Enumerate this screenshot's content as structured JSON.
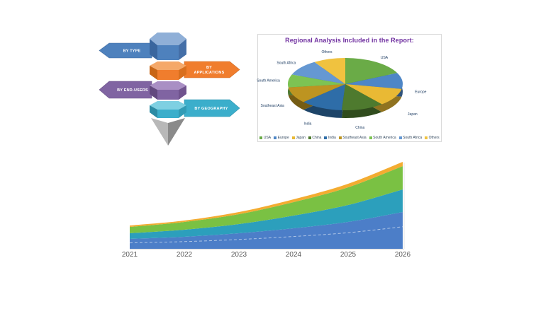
{
  "pencil_diagram": {
    "arrows": [
      {
        "label": "BY TYPE",
        "direction": "left",
        "color": "#4e81bd",
        "two_line": false
      },
      {
        "label": "BY APPLICATIONS",
        "direction": "right",
        "color": "#f07d2d",
        "two_line": true
      },
      {
        "label": "BY END-USERS",
        "direction": "left",
        "color": "#8064a2",
        "two_line": false
      },
      {
        "label": "BY GEOGRAPHY",
        "direction": "right",
        "color": "#3baecb",
        "two_line": false
      }
    ],
    "segments": [
      {
        "base": "#4e81bd",
        "light": "#8fafd7",
        "dark": "#3a669e",
        "darker": "#446fa8"
      },
      {
        "base": "#f07d2d",
        "light": "#f5a869",
        "dark": "#c86515",
        "darker": "#d96f1e"
      },
      {
        "base": "#8064a2",
        "light": "#a98fc4",
        "dark": "#63497f",
        "darker": "#70538e"
      },
      {
        "base": "#3baecb",
        "light": "#7ed0e2",
        "dark": "#2b8ba4",
        "darker": "#319bb5"
      }
    ],
    "tip": {
      "light": "#b8b8b8",
      "dark": "#8a8a8a"
    }
  },
  "pie_panel": {
    "title": "Regional Analysis Included in the Report:",
    "title_color": "#7030a0",
    "border_color": "#d8d8d8",
    "label_color": "#17375e"
  },
  "chart_data": [
    {
      "type": "pie",
      "style": "3d",
      "title": "Regional Analysis Included in the Report:",
      "labels": [
        "USA",
        "Europe",
        "Japan",
        "China",
        "India",
        "Southeast Asia",
        "South America",
        "South Africa",
        "Others"
      ],
      "values": [
        18,
        10,
        11,
        12,
        12,
        10,
        8,
        10,
        9
      ],
      "colors": [
        "#6aab47",
        "#4e86c6",
        "#e9b934",
        "#4e7a2e",
        "#2e6da8",
        "#bd9421",
        "#7dc353",
        "#6598d2",
        "#f0c23f"
      ],
      "legend_position": "bottom"
    },
    {
      "type": "area",
      "stacked": true,
      "smooth": true,
      "x": [
        2021,
        2022,
        2023,
        2024,
        2025,
        2026
      ],
      "series": [
        {
          "color": "#4c7ec8",
          "values": [
            14,
            17,
            22,
            29,
            38,
            52
          ]
        },
        {
          "color": "#2c9fbc",
          "values": [
            8,
            10,
            13,
            18,
            24,
            32
          ]
        },
        {
          "color": "#7ac143",
          "values": [
            9,
            11,
            14,
            19,
            25,
            33
          ]
        },
        {
          "color": "#f3ac31",
          "values": [
            2,
            2,
            3,
            4,
            5,
            6
          ]
        }
      ],
      "totals": [
        33,
        40,
        52,
        70,
        92,
        123
      ],
      "ylim": [
        0,
        130
      ],
      "grid": false,
      "legend": "none",
      "xlabel_color": "#595959"
    }
  ]
}
